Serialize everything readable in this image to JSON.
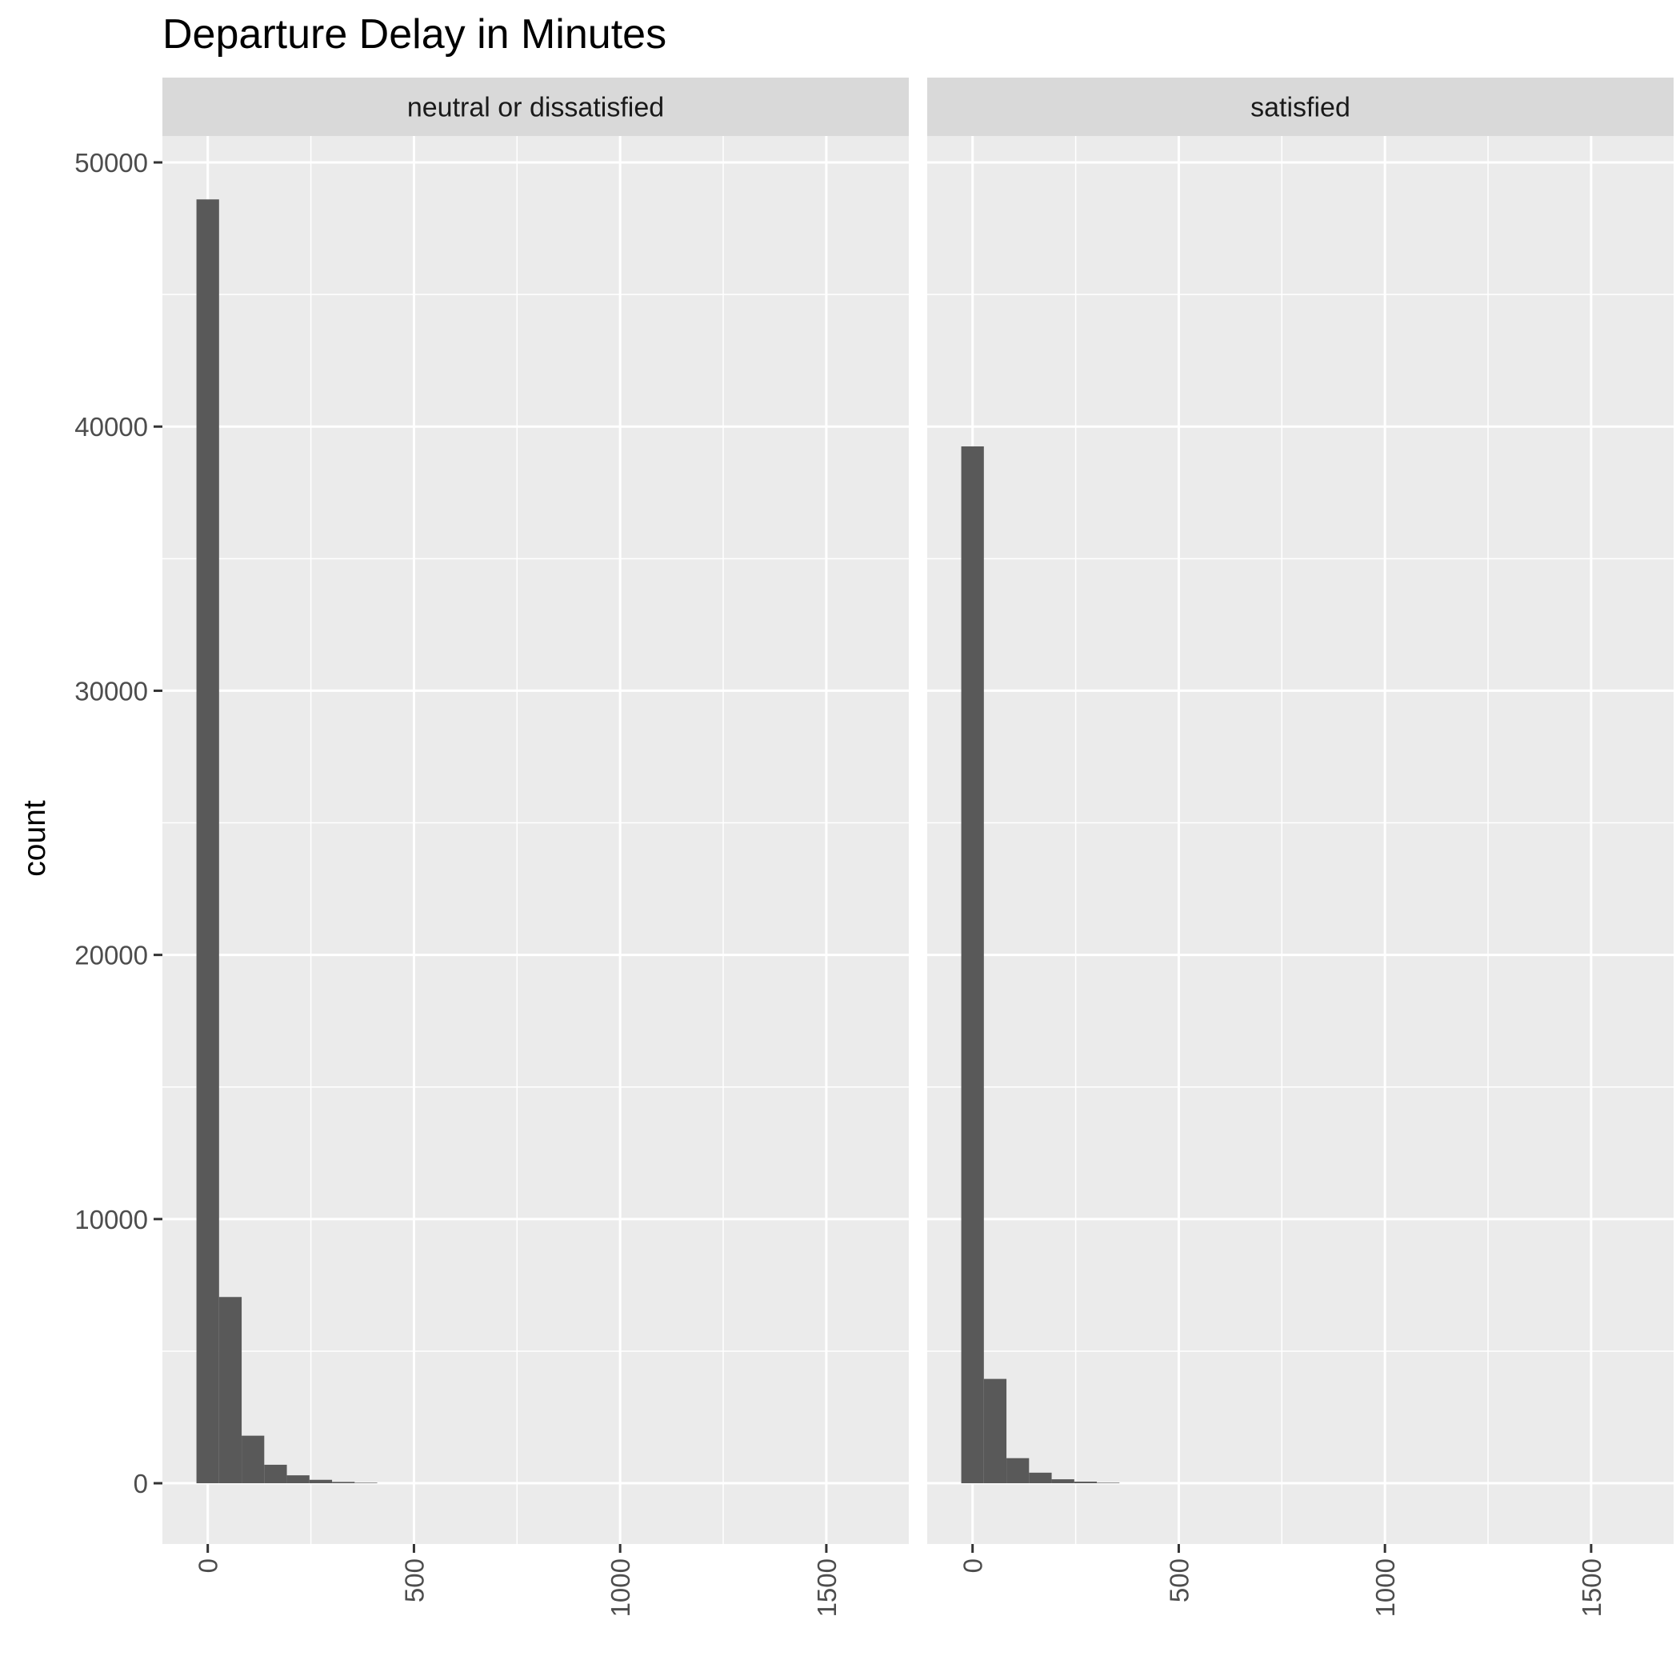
{
  "chart_data": {
    "type": "bar",
    "title": "Departure Delay in Minutes",
    "xlabel": "",
    "ylabel": "count",
    "ylim": [
      -2300,
      51000
    ],
    "xlim": [
      -110,
      1700
    ],
    "y_ticks": [
      0,
      10000,
      20000,
      30000,
      40000,
      50000
    ],
    "y_tick_labels": [
      "0",
      "10000",
      "20000",
      "30000",
      "40000",
      "50000"
    ],
    "x_ticks": [
      0,
      500,
      1000,
      1500
    ],
    "x_tick_labels": [
      "0",
      "500",
      "1000",
      "1500"
    ],
    "grid": true,
    "bin_width": 54.8,
    "panels": [
      {
        "facet": "neutral or dissatisfied",
        "bins": [
          0,
          54.8,
          109.6,
          164.4,
          219.2,
          274,
          328.8,
          383.6
        ],
        "values": [
          48600,
          7050,
          1800,
          700,
          300,
          130,
          50,
          20
        ]
      },
      {
        "facet": "satisfied",
        "bins": [
          0,
          54.8,
          109.6,
          164.4,
          219.2,
          274,
          328.8
        ],
        "values": [
          39250,
          3950,
          950,
          400,
          150,
          60,
          20
        ]
      }
    ],
    "colors": {
      "bar": "#595959",
      "panel_bg": "#ebebeb",
      "strip_bg": "#d9d9d9",
      "grid": "#ffffff"
    }
  }
}
